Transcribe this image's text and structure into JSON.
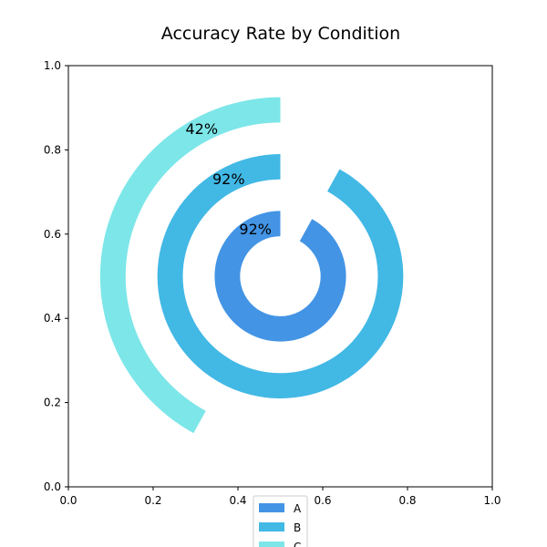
{
  "chart_data": {
    "type": "radial-bar",
    "title": "Accuracy Rate by Condition",
    "xlim": [
      0,
      1
    ],
    "ylim": [
      0,
      1
    ],
    "xticks": [
      "0.0",
      "0.2",
      "0.4",
      "0.6",
      "0.8",
      "1.0"
    ],
    "yticks": [
      "0.0",
      "0.2",
      "0.4",
      "0.6",
      "0.8",
      "1.0"
    ],
    "center": [
      0.5,
      0.5
    ],
    "series": [
      {
        "name": "A",
        "value": 92,
        "label": "92%",
        "color": "#4394e5",
        "radius": 0.155,
        "width": 0.06
      },
      {
        "name": "B",
        "value": 92,
        "label": "92%",
        "color": "#42b8e5",
        "radius": 0.29,
        "width": 0.06
      },
      {
        "name": "C",
        "value": 42,
        "label": "42%",
        "color": "#7de6e9",
        "radius": 0.425,
        "width": 0.06
      }
    ],
    "legend_placement": "bottom-center",
    "grid": false
  }
}
